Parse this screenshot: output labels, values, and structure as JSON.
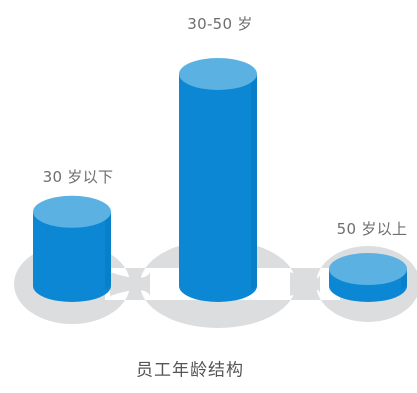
{
  "chart_data": {
    "type": "bar",
    "style": "3d-cylinder",
    "title": "员工年龄结构",
    "categories": [
      "30 岁以下",
      "30-50 岁",
      "50 岁以上"
    ],
    "data_labels": [
      "30 岁以下",
      "30-50 岁",
      "50 岁以上"
    ],
    "values": [
      35,
      100,
      8
    ],
    "value_unit": "relative bar height (% of tallest)",
    "xlabel": "",
    "ylabel": "",
    "ylim": [
      0,
      100
    ],
    "grid": false,
    "legend": "none",
    "colors": {
      "body": "#0B87D4",
      "top": "#5BB2E2",
      "base": "#DCDDDF"
    }
  }
}
